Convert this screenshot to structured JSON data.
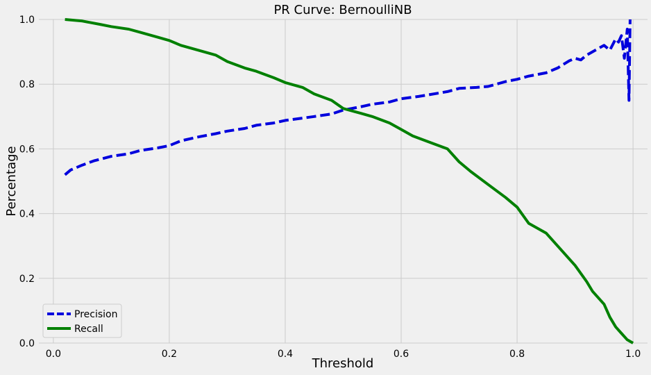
{
  "chart_data": {
    "type": "line",
    "title": "PR Curve: BernoulliNB",
    "xlabel": "Threshold",
    "ylabel": "Percentage",
    "xlim": [
      -0.025,
      1.025
    ],
    "ylim": [
      0,
      1
    ],
    "xticks": [
      0.0,
      0.2,
      0.4,
      0.6,
      0.8,
      1.0
    ],
    "xtick_labels": [
      "0.0",
      "0.2",
      "0.4",
      "0.6",
      "0.8",
      "1.0"
    ],
    "yticks": [
      0.0,
      0.2,
      0.4,
      0.6,
      0.8,
      1.0
    ],
    "ytick_labels": [
      "0.0",
      "0.2",
      "0.4",
      "0.6",
      "0.8",
      "1.0"
    ],
    "grid": true,
    "legend_position": "lower-left",
    "colors": {
      "precision": "#0000dd",
      "recall": "#008000",
      "background": "#f0f0f0",
      "grid": "#cbcbcb"
    },
    "series": [
      {
        "name": "Precision",
        "style": "dashed",
        "x": [
          0.02,
          0.03,
          0.05,
          0.07,
          0.1,
          0.13,
          0.15,
          0.18,
          0.2,
          0.22,
          0.25,
          0.28,
          0.3,
          0.33,
          0.35,
          0.38,
          0.4,
          0.43,
          0.45,
          0.48,
          0.5,
          0.53,
          0.55,
          0.58,
          0.6,
          0.63,
          0.65,
          0.68,
          0.7,
          0.73,
          0.75,
          0.78,
          0.8,
          0.82,
          0.85,
          0.87,
          0.89,
          0.9,
          0.91,
          0.92,
          0.93,
          0.94,
          0.95,
          0.96,
          0.97,
          0.975,
          0.98,
          0.985,
          0.99,
          0.993,
          0.995
        ],
        "y": [
          0.52,
          0.535,
          0.55,
          0.563,
          0.577,
          0.585,
          0.595,
          0.603,
          0.61,
          0.625,
          0.637,
          0.647,
          0.655,
          0.663,
          0.673,
          0.68,
          0.688,
          0.695,
          0.7,
          0.708,
          0.72,
          0.73,
          0.738,
          0.745,
          0.755,
          0.762,
          0.768,
          0.777,
          0.787,
          0.79,
          0.793,
          0.808,
          0.815,
          0.825,
          0.835,
          0.85,
          0.872,
          0.88,
          0.875,
          0.89,
          0.9,
          0.91,
          0.92,
          0.905,
          0.94,
          0.93,
          0.95,
          0.88,
          0.97,
          0.75,
          1.0
        ]
      },
      {
        "name": "Recall",
        "style": "solid",
        "x": [
          0.02,
          0.05,
          0.08,
          0.1,
          0.13,
          0.15,
          0.18,
          0.2,
          0.22,
          0.25,
          0.28,
          0.3,
          0.33,
          0.35,
          0.38,
          0.4,
          0.43,
          0.45,
          0.48,
          0.5,
          0.53,
          0.55,
          0.58,
          0.6,
          0.62,
          0.65,
          0.68,
          0.7,
          0.72,
          0.75,
          0.78,
          0.8,
          0.82,
          0.85,
          0.87,
          0.9,
          0.92,
          0.93,
          0.95,
          0.96,
          0.97,
          0.98,
          0.99,
          1.0
        ],
        "y": [
          1.0,
          0.995,
          0.985,
          0.978,
          0.97,
          0.96,
          0.945,
          0.935,
          0.92,
          0.905,
          0.89,
          0.87,
          0.85,
          0.84,
          0.82,
          0.805,
          0.79,
          0.77,
          0.75,
          0.725,
          0.71,
          0.7,
          0.68,
          0.66,
          0.64,
          0.62,
          0.6,
          0.56,
          0.53,
          0.49,
          0.45,
          0.42,
          0.37,
          0.34,
          0.3,
          0.24,
          0.19,
          0.16,
          0.12,
          0.08,
          0.05,
          0.03,
          0.01,
          0.0
        ]
      }
    ]
  }
}
